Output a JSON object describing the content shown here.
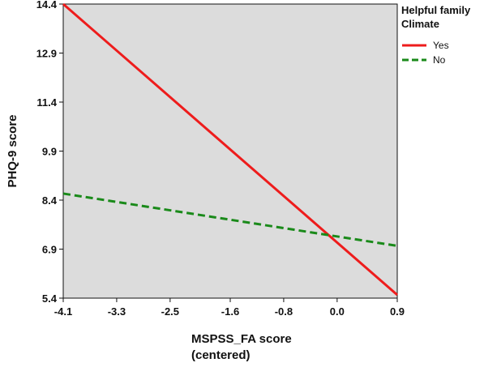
{
  "chart_data": {
    "type": "line",
    "title": "",
    "xlabel_lines": [
      "MSPSS_FA score",
      "(centered)"
    ],
    "ylabel": "PHQ-9 score",
    "xlim": [
      -4.1,
      0.9
    ],
    "ylim": [
      5.4,
      14.4
    ],
    "x_ticks": [
      -4.1,
      -3.3,
      -2.5,
      -1.6,
      -0.8,
      0.0,
      0.9
    ],
    "x_tick_labels": [
      "-4.1",
      "-3.3",
      "-2.5",
      "-1.6",
      "-0.8",
      "0.0",
      "0.9"
    ],
    "y_ticks": [
      5.4,
      6.9,
      8.4,
      9.9,
      11.4,
      12.9,
      14.4
    ],
    "y_tick_labels": [
      "5.4",
      "6.9",
      "8.4",
      "9.9",
      "11.4",
      "12.9",
      "14.4"
    ],
    "grid": false,
    "background_color": "#dcdcdc",
    "legend": {
      "title_lines": [
        "Helpful family",
        "Climate"
      ],
      "placement": "top-right-outside"
    },
    "series": [
      {
        "name": "Yes",
        "color": "#ee1c1c",
        "dash": "solid",
        "x": [
          -4.1,
          0.9
        ],
        "y": [
          14.4,
          5.5
        ]
      },
      {
        "name": "No",
        "color": "#1a8a1a",
        "dash": "dashed",
        "x": [
          -4.1,
          0.9
        ],
        "y": [
          8.6,
          7.0
        ]
      }
    ]
  }
}
